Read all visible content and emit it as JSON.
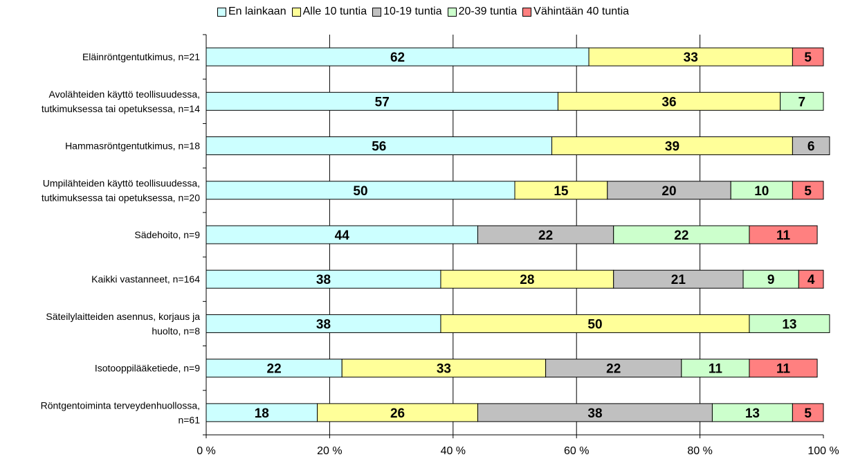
{
  "chart_data": {
    "type": "bar",
    "orientation": "horizontal",
    "stacked": "percent",
    "categories": [
      "Eläinröntgentutkimus, n=21",
      "Avolähteiden käyttö teollisuudessa, tutkimuksessa tai opetuksessa, n=14",
      "Hammasröntgentutkimus, n=18",
      "Umpilähteiden käyttö teollisuudessa, tutkimuksessa tai opetuksessa, n=20",
      "Sädehoito, n=9",
      "Kaikki vastanneet, n=164",
      "Säteilylaitteiden asennus, korjaus ja huolto, n=8",
      "Isotooppilääketiede, n=9",
      "Röntgentoiminta terveydenhuollossa, n=61"
    ],
    "category_lines": [
      [
        "Eläinröntgentutkimus, n=21"
      ],
      [
        "Avolähteiden käyttö teollisuudessa,",
        "tutkimuksessa tai opetuksessa, n=14"
      ],
      [
        "Hammasröntgentutkimus, n=18"
      ],
      [
        "Umpilähteiden käyttö teollisuudessa,",
        "tutkimuksessa tai opetuksessa, n=20"
      ],
      [
        "Sädehoito, n=9"
      ],
      [
        "Kaikki vastanneet, n=164"
      ],
      [
        "Säteilylaitteiden asennus, korjaus ja",
        "huolto, n=8"
      ],
      [
        "Isotooppilääketiede, n=9"
      ],
      [
        "Röntgentoiminta terveydenhuollossa,",
        "n=61"
      ]
    ],
    "series": [
      {
        "name": "En lainkaan",
        "color": "#ccffff",
        "values": [
          62,
          57,
          56,
          50,
          44,
          38,
          38,
          22,
          18
        ]
      },
      {
        "name": "Alle 10 tuntia",
        "color": "#ffff99",
        "values": [
          33,
          36,
          39,
          15,
          0,
          28,
          50,
          33,
          26
        ]
      },
      {
        "name": "10-19 tuntia",
        "color": "#c0c0c0",
        "values": [
          0,
          0,
          6,
          20,
          22,
          21,
          0,
          22,
          38
        ]
      },
      {
        "name": "20-39 tuntia",
        "color": "#ccffcc",
        "values": [
          0,
          7,
          0,
          10,
          22,
          9,
          13,
          11,
          13
        ]
      },
      {
        "name": "Vähintään 40 tuntia",
        "color": "#ff8080",
        "values": [
          5,
          0,
          0,
          5,
          11,
          4,
          0,
          11,
          5
        ]
      }
    ],
    "x_ticks": [
      "0 %",
      "20 %",
      "40 %",
      "60 %",
      "80 %",
      "100 %"
    ],
    "xlim": [
      0,
      100
    ],
    "grid": true,
    "legend_position": "top"
  }
}
